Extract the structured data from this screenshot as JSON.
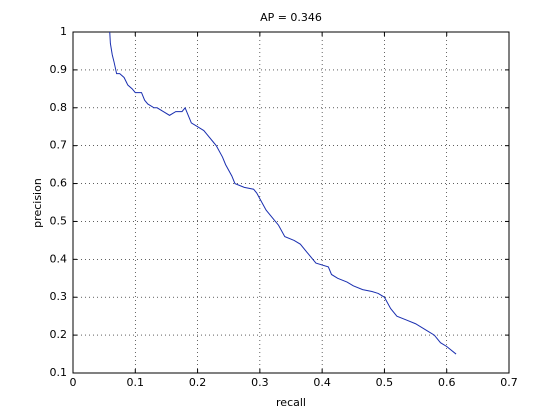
{
  "chart_data": {
    "type": "line",
    "title": "AP = 0.346",
    "x_label": "recall",
    "y_label": "precision",
    "x": [
      0.059,
      0.06,
      0.063,
      0.066,
      0.07,
      0.075,
      0.082,
      0.088,
      0.095,
      0.1,
      0.11,
      0.115,
      0.12,
      0.13,
      0.135,
      0.145,
      0.155,
      0.165,
      0.175,
      0.18,
      0.19,
      0.2,
      0.21,
      0.215,
      0.225,
      0.23,
      0.24,
      0.245,
      0.255,
      0.26,
      0.275,
      0.29,
      0.295,
      0.3,
      0.31,
      0.32,
      0.33,
      0.34,
      0.355,
      0.365,
      0.375,
      0.385,
      0.39,
      0.41,
      0.415,
      0.425,
      0.44,
      0.45,
      0.465,
      0.48,
      0.49,
      0.5,
      0.51,
      0.52,
      0.535,
      0.55,
      0.57,
      0.58,
      0.59,
      0.6,
      0.615
    ],
    "series": [
      {
        "name": "precision",
        "color": "#1a2fb0",
        "values": [
          1.0,
          0.97,
          0.94,
          0.92,
          0.89,
          0.89,
          0.88,
          0.86,
          0.85,
          0.84,
          0.84,
          0.82,
          0.81,
          0.8,
          0.8,
          0.79,
          0.78,
          0.79,
          0.79,
          0.8,
          0.76,
          0.75,
          0.74,
          0.73,
          0.71,
          0.7,
          0.67,
          0.65,
          0.62,
          0.6,
          0.59,
          0.585,
          0.575,
          0.56,
          0.53,
          0.51,
          0.49,
          0.46,
          0.45,
          0.44,
          0.42,
          0.4,
          0.39,
          0.38,
          0.36,
          0.35,
          0.34,
          0.33,
          0.32,
          0.315,
          0.31,
          0.3,
          0.27,
          0.25,
          0.24,
          0.23,
          0.21,
          0.2,
          0.18,
          0.17,
          0.15
        ]
      }
    ],
    "xlim": [
      0,
      0.7
    ],
    "ylim": [
      0.1,
      1
    ],
    "xticks": [
      0,
      0.1,
      0.2,
      0.3,
      0.4,
      0.5,
      0.6,
      0.7
    ],
    "yticks": [
      0.1,
      0.2,
      0.3,
      0.4,
      0.5,
      0.6,
      0.7,
      0.8,
      0.9,
      1
    ],
    "grid": true
  }
}
